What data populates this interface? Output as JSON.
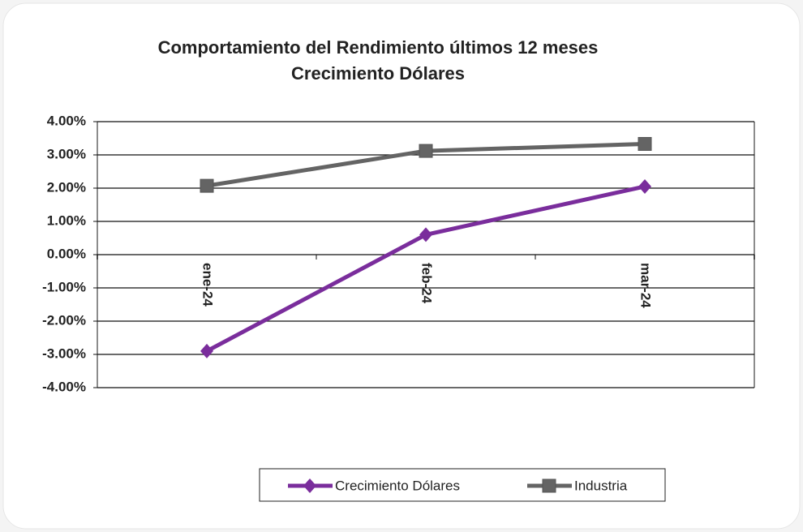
{
  "chart_data": {
    "type": "line",
    "title": "Comportamiento del Rendimiento últimos 12 meses",
    "subtitle": "Crecimiento Dólares",
    "categories": [
      "ene-24",
      "feb-24",
      "mar-24"
    ],
    "series": [
      {
        "name": "Crecimiento Dólares",
        "color": "#7a2d9c",
        "marker": "diamond",
        "values": [
          -2.9,
          0.6,
          2.05
        ]
      },
      {
        "name": "Industria",
        "color": "#646464",
        "marker": "square",
        "values": [
          2.07,
          3.12,
          3.33
        ]
      }
    ],
    "ylim": [
      -4,
      4
    ],
    "yticks": [
      {
        "value": -4,
        "label": "-4.00%"
      },
      {
        "value": -3,
        "label": "-3.00%"
      },
      {
        "value": -2,
        "label": "-2.00%"
      },
      {
        "value": -1,
        "label": "-1.00%"
      },
      {
        "value": 0,
        "label": "0.00%"
      },
      {
        "value": 1,
        "label": "1.00%"
      },
      {
        "value": 2,
        "label": "2.00%"
      },
      {
        "value": 3,
        "label": "3.00%"
      },
      {
        "value": 4,
        "label": "4.00%"
      }
    ],
    "grid": true,
    "legend": "bottom"
  }
}
